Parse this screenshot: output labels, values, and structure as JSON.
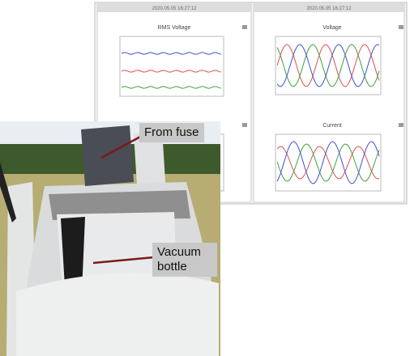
{
  "screenshot": {
    "left_panel": {
      "timestamp": "2020.05.05 16:27:12",
      "title": "RMS Voltage"
    },
    "right_panel": {
      "timestamp": "2020.05.05 16:27:12",
      "top_title": "Voltage",
      "bottom_title": "Current"
    }
  },
  "photo": {
    "labels": [
      "From fuse",
      "Vacuum bottle"
    ]
  }
}
